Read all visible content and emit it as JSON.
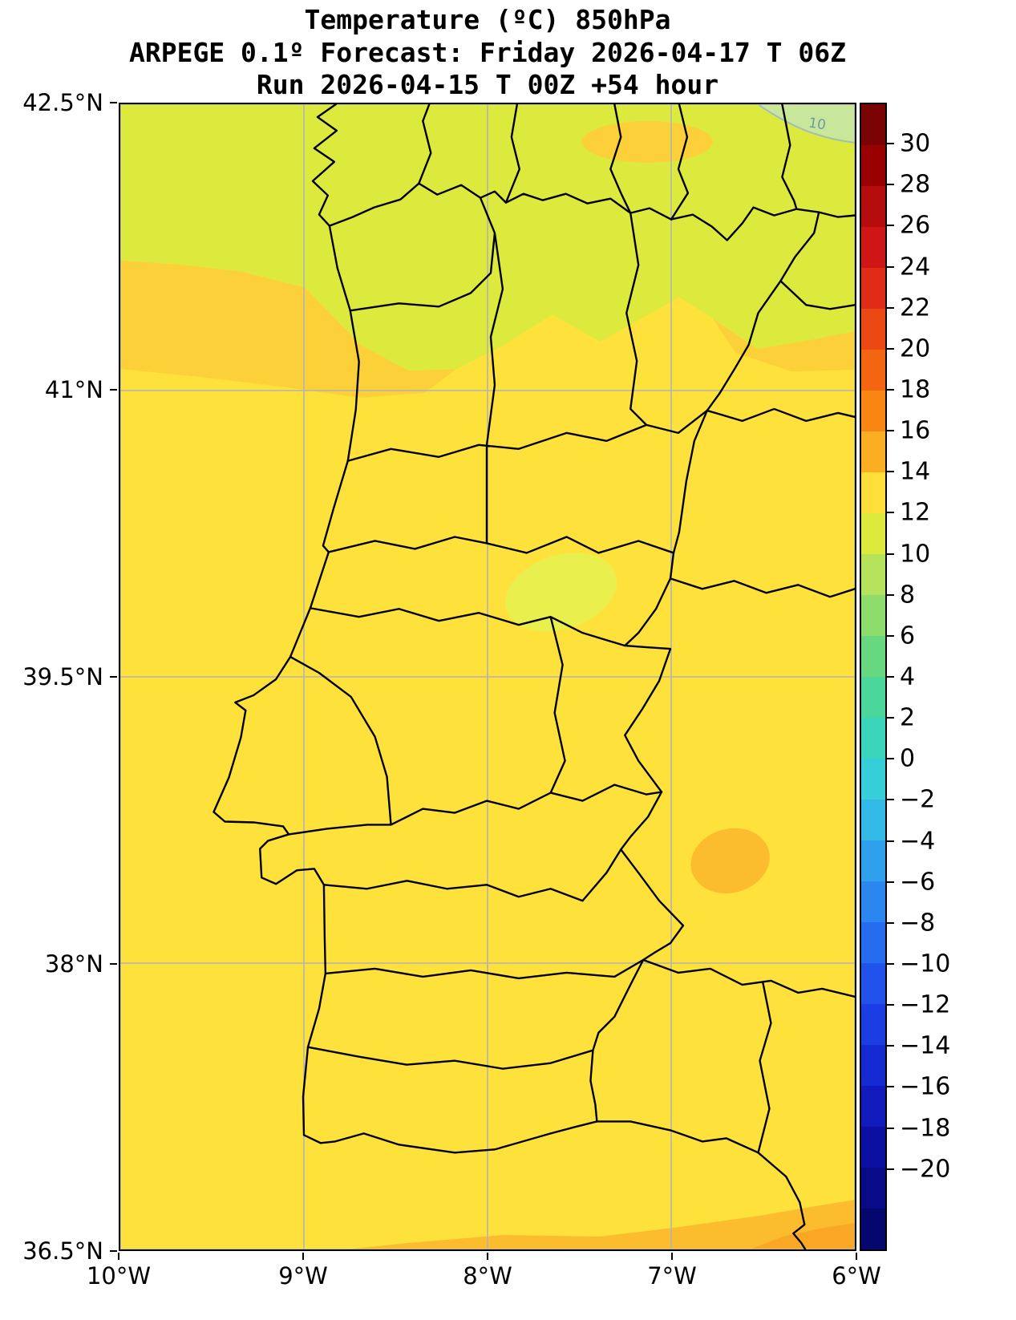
{
  "title": {
    "line1": "Temperature (ºC) 850hPa",
    "line2": "ARPEGE 0.1º Forecast: Friday 2026-04-17 T 06Z",
    "line3": "Run 2026-04-15 T 00Z +54 hour"
  },
  "chart_data": {
    "type": "heatmap",
    "title": "Temperature (ºC) 850hPa",
    "model": "ARPEGE 0.1º",
    "valid_time": "Friday 2026-04-17 T 06Z",
    "run_time": "2026-04-15 T 00Z",
    "lead": "+54 hour",
    "region": "Portugal and western Spain",
    "x_axis": {
      "min": -10,
      "max": -6,
      "ticks": [
        {
          "value": -10,
          "label": "10°W"
        },
        {
          "value": -9,
          "label": "9°W"
        },
        {
          "value": -8,
          "label": "8°W"
        },
        {
          "value": -7,
          "label": "7°W"
        },
        {
          "value": -6,
          "label": "6°W"
        }
      ]
    },
    "y_axis": {
      "min": 36.5,
      "max": 42.5,
      "ticks": [
        {
          "value": 42.5,
          "label": "42.5°N"
        },
        {
          "value": 41,
          "label": "41°N"
        },
        {
          "value": 39.5,
          "label": "39.5°N"
        },
        {
          "value": 38,
          "label": "38°N"
        },
        {
          "value": 36.5,
          "label": "36.5°N"
        }
      ]
    },
    "grid": true,
    "contour_label": "10",
    "features": [
      {
        "area": "north of ~41.3°N (N Portugal / Galicia / León)",
        "value_c": "10–12"
      },
      {
        "area": "most of Portugal and SW Spain",
        "value_c": "12–14"
      },
      {
        "area": "coastal band ~41–41.5°N west half",
        "value_c": "13–14"
      },
      {
        "area": "far NE corner (~42.4°N 6.2°W), 10°C contour labeled",
        "value_c": "8–10"
      },
      {
        "area": "central patch (~39.7°N 7.6°W)",
        "value_c": "10–12"
      },
      {
        "area": "SE Spain patch (~38.4°N 6.7°W)",
        "value_c": "14–16"
      },
      {
        "area": "south coast strip near 36.5°N",
        "value_c": "14–16"
      }
    ],
    "colorbar": {
      "top_value": 32,
      "bottom_value": -24,
      "ticks": [
        {
          "value": 30,
          "label": "30"
        },
        {
          "value": 28,
          "label": "28"
        },
        {
          "value": 26,
          "label": "26"
        },
        {
          "value": 24,
          "label": "24"
        },
        {
          "value": 22,
          "label": "22"
        },
        {
          "value": 20,
          "label": "20"
        },
        {
          "value": 18,
          "label": "18"
        },
        {
          "value": 16,
          "label": "16"
        },
        {
          "value": 14,
          "label": "14"
        },
        {
          "value": 12,
          "label": "12"
        },
        {
          "value": 10,
          "label": "10"
        },
        {
          "value": 8,
          "label": "8"
        },
        {
          "value": 6,
          "label": "6"
        },
        {
          "value": 4,
          "label": "4"
        },
        {
          "value": 2,
          "label": "2"
        },
        {
          "value": 0,
          "label": "0"
        },
        {
          "value": -2,
          "label": "−2"
        },
        {
          "value": -4,
          "label": "−4"
        },
        {
          "value": -6,
          "label": "−6"
        },
        {
          "value": -8,
          "label": "−8"
        },
        {
          "value": -10,
          "label": "−10"
        },
        {
          "value": -12,
          "label": "−12"
        },
        {
          "value": -14,
          "label": "−14"
        },
        {
          "value": -16,
          "label": "−16"
        },
        {
          "value": -18,
          "label": "−18"
        },
        {
          "value": -20,
          "label": "−20"
        }
      ],
      "segment_colors": [
        "#7a0403",
        "#990101",
        "#b50d0d",
        "#cf1515",
        "#e02b18",
        "#ec4814",
        "#f46512",
        "#f98613",
        "#fcae22",
        "#fede3a",
        "#dcea3e",
        "#b5e35b",
        "#8edc6b",
        "#67d87f",
        "#4bd79c",
        "#3ad5bb",
        "#36cfd9",
        "#33b9e6",
        "#2fa0ec",
        "#2b86ef",
        "#266cef",
        "#2153ec",
        "#1c3ce4",
        "#162ad4",
        "#111bbd",
        "#0c10a2",
        "#080a88",
        "#05066e"
      ]
    }
  },
  "palette": {
    "background": "#ffffff",
    "band_8_10": "#c9e79b",
    "band_10_12": "#dcea3e",
    "band_11_13_patch": "#e9ef4c",
    "band_12_13": "#ffe13c",
    "band_13_14": "#fcd039",
    "band_14_15": "#fbbc2e",
    "band_15_16": "#fba726",
    "grid": "#b3b3b3",
    "boundary": "#000000",
    "contour_line": "#9fbdc4",
    "contour_text": "#6f9aa8"
  }
}
